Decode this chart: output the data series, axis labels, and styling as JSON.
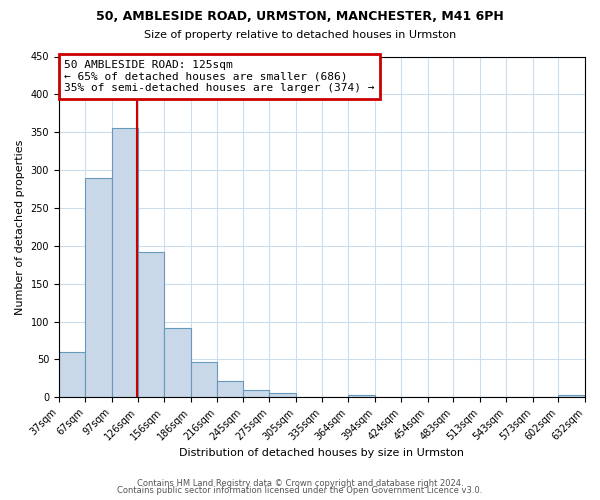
{
  "title": "50, AMBLESIDE ROAD, URMSTON, MANCHESTER, M41 6PH",
  "subtitle": "Size of property relative to detached houses in Urmston",
  "xlabel": "Distribution of detached houses by size in Urmston",
  "ylabel": "Number of detached properties",
  "bar_edges": [
    37,
    67,
    97,
    126,
    156,
    186,
    216,
    245,
    275,
    305,
    335,
    364,
    394,
    424,
    454,
    483,
    513,
    543,
    573,
    602,
    632
  ],
  "bar_heights": [
    60,
    290,
    355,
    192,
    91,
    46,
    22,
    9,
    5,
    0,
    0,
    3,
    0,
    0,
    0,
    0,
    0,
    0,
    0,
    3
  ],
  "bar_color": "#c8d8e8",
  "bar_edgecolor": "#6699bb",
  "property_line_x": 125,
  "property_line_color": "#cc0000",
  "annotation_box_color": "#cc0000",
  "annotation_title": "50 AMBLESIDE ROAD: 125sqm",
  "annotation_line1": "← 65% of detached houses are smaller (686)",
  "annotation_line2": "35% of semi-detached houses are larger (374) →",
  "ylim": [
    0,
    450
  ],
  "yticks": [
    0,
    50,
    100,
    150,
    200,
    250,
    300,
    350,
    400,
    450
  ],
  "xtick_labels": [
    "37sqm",
    "67sqm",
    "97sqm",
    "126sqm",
    "156sqm",
    "186sqm",
    "216sqm",
    "245sqm",
    "275sqm",
    "305sqm",
    "335sqm",
    "364sqm",
    "394sqm",
    "424sqm",
    "454sqm",
    "483sqm",
    "513sqm",
    "543sqm",
    "573sqm",
    "602sqm",
    "632sqm"
  ],
  "footer1": "Contains HM Land Registry data © Crown copyright and database right 2024.",
  "footer2": "Contains public sector information licensed under the Open Government Licence v3.0.",
  "background_color": "#ffffff",
  "grid_color": "#ccddee",
  "title_fontsize": 9,
  "subtitle_fontsize": 8,
  "xlabel_fontsize": 8,
  "ylabel_fontsize": 8,
  "tick_fontsize": 7,
  "annotation_fontsize": 8,
  "footer_fontsize": 6
}
